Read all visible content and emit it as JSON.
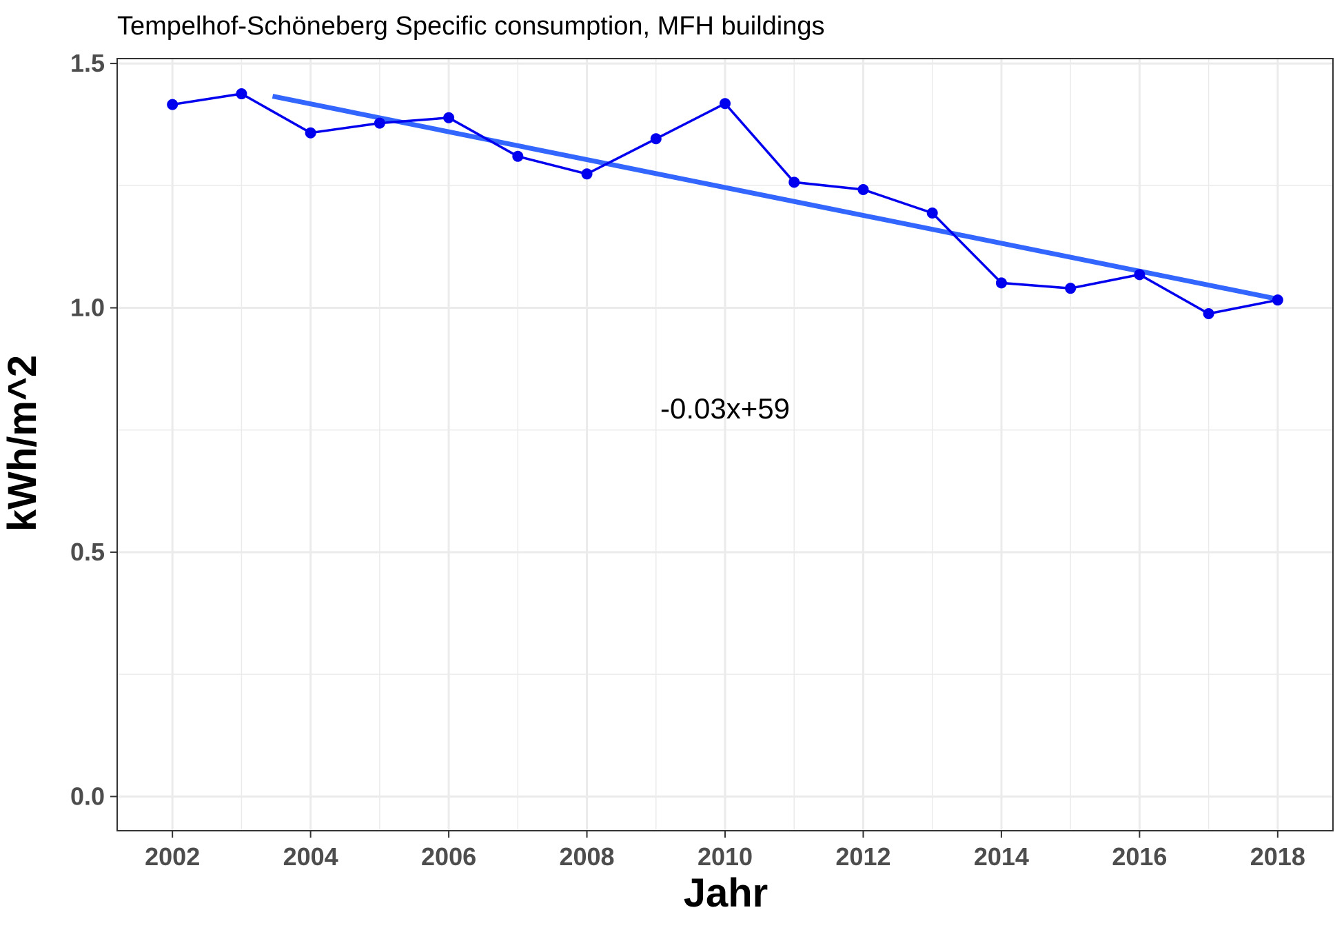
{
  "chart_data": {
    "type": "line",
    "title": "Tempelhof-Schöneberg Specific consumption, MFH buildings",
    "xlabel": "Jahr",
    "ylabel": "kWh/m^2",
    "x": [
      2002,
      2003,
      2004,
      2005,
      2006,
      2007,
      2008,
      2009,
      2010,
      2011,
      2012,
      2013,
      2014,
      2015,
      2016,
      2017,
      2018
    ],
    "series": [
      {
        "values": [
          1.416,
          1.438,
          1.358,
          1.378,
          1.389,
          1.31,
          1.274,
          1.346,
          1.418,
          1.257,
          1.242,
          1.194,
          1.051,
          1.04,
          1.068,
          0.988,
          1.016
        ]
      }
    ],
    "trendline": {
      "x": [
        2003.45,
        2018
      ],
      "y": [
        1.433,
        1.018
      ]
    },
    "annotation": {
      "text": "-0.03x+59",
      "x": 2010,
      "y": 0.795
    },
    "xlim": [
      2001.2,
      2018.8
    ],
    "ylim": [
      -0.07,
      1.51
    ],
    "xticks": [
      2002,
      2004,
      2006,
      2008,
      2010,
      2012,
      2014,
      2016,
      2018
    ],
    "yticks": [
      0.0,
      0.5,
      1.0,
      1.5
    ],
    "ytick_labels": [
      "0.0",
      "0.5",
      "1.0",
      "1.5"
    ],
    "grid": true,
    "colors": {
      "series": "#0000ee",
      "trend": "#3366ff",
      "grid": "#ebebeb",
      "frame": "#333333"
    }
  }
}
